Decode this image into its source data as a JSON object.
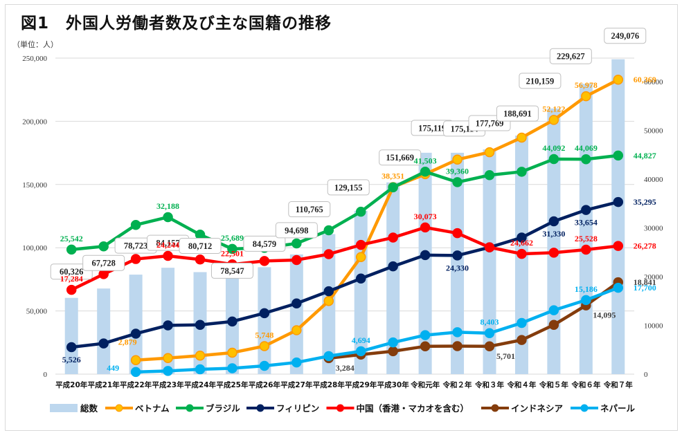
{
  "chart_data": {
    "type": "bar+line",
    "title": "図1　外国人労働者数及び主な国籍の推移",
    "unit_label": "（単位：人）",
    "categories": [
      "平成20年",
      "平成21年",
      "平成22年",
      "平成23年",
      "平成24年",
      "平成25年",
      "平成26年",
      "平成27年",
      "平成28年",
      "平成29年",
      "平成30年",
      "令和元年",
      "令和２年",
      "令和３年",
      "令和４年",
      "令和５年",
      "令和６年",
      "令和７年"
    ],
    "left_axis": {
      "min": 0,
      "max": 250000,
      "ticks": [
        "0",
        "50,000",
        "100,000",
        "150,000",
        "200,000",
        "250,000"
      ],
      "tick_values": [
        0,
        50000,
        100000,
        150000,
        200000,
        250000
      ]
    },
    "right_axis": {
      "min": 0,
      "max": 64800,
      "ticks": [
        "0",
        "10000",
        "20000",
        "30000",
        "40000",
        "50000",
        "60000"
      ],
      "tick_values": [
        0,
        10000,
        20000,
        30000,
        40000,
        50000,
        60000
      ]
    },
    "grid": true,
    "legend_position": "bottom",
    "bars": {
      "name": "総数",
      "color": "#bdd7ee",
      "axis": "left",
      "values": [
        60326,
        67728,
        78723,
        84157,
        80712,
        78547,
        84579,
        94698,
        110765,
        129155,
        151669,
        175119,
        175114,
        177769,
        188691,
        210159,
        229627,
        249076
      ],
      "labels": [
        "60,326",
        "67,728",
        "78,723",
        "84,157",
        "80,712",
        "78,547",
        "84,579",
        "94,698",
        "110,765",
        "129,155",
        "151,669",
        "175,119",
        "175,114",
        "177,769",
        "188,691",
        "210,159",
        "229,627",
        "249,076"
      ]
    },
    "series": [
      {
        "name": "ベトナム",
        "color": "#ff9900",
        "marker_fill": "#ffc000",
        "axis": "right",
        "values": [
          null,
          null,
          2879,
          3300,
          3800,
          4400,
          5748,
          9000,
          15000,
          24000,
          38351,
          41000,
          44000,
          45500,
          48500,
          52122,
          56978,
          60369
        ],
        "labels": [
          {
            "i": 2,
            "text": "2,879"
          },
          {
            "i": 6,
            "text": "5,748"
          },
          {
            "i": 10,
            "text": "38,351"
          },
          {
            "i": 15,
            "text": "52,122"
          },
          {
            "i": 16,
            "text": "56,978"
          },
          {
            "i": 17,
            "text": "60,369"
          }
        ]
      },
      {
        "name": "ブラジル",
        "color": "#00b050",
        "axis": "right",
        "values": [
          25542,
          26200,
          30600,
          32188,
          28600,
          25689,
          25900,
          26800,
          29500,
          33300,
          38300,
          41503,
          39360,
          40800,
          41500,
          44092,
          44069,
          44827
        ],
        "labels": [
          {
            "i": 0,
            "text": "25,542"
          },
          {
            "i": 3,
            "text": "32,188"
          },
          {
            "i": 5,
            "text": "25,689"
          },
          {
            "i": 11,
            "text": "41,503"
          },
          {
            "i": 12,
            "text": "39,360"
          },
          {
            "i": 15,
            "text": "44,092"
          },
          {
            "i": 16,
            "text": "44,069"
          },
          {
            "i": 17,
            "text": "44,827"
          }
        ]
      },
      {
        "name": "フィリピン",
        "color": "#002060",
        "axis": "right",
        "values": [
          5526,
          6300,
          8300,
          10000,
          10100,
          10800,
          12500,
          14500,
          17000,
          19600,
          22100,
          24400,
          24330,
          26000,
          28000,
          31330,
          33654,
          35295
        ],
        "labels": [
          {
            "i": 0,
            "text": "5,526"
          },
          {
            "i": 12,
            "text": "24,330"
          },
          {
            "i": 15,
            "text": "31,330"
          },
          {
            "i": 16,
            "text": "33,654"
          },
          {
            "i": 17,
            "text": "35,295"
          }
        ]
      },
      {
        "name": "中国（香港・マカオを含む）",
        "color": "#ff0000",
        "axis": "right",
        "values": [
          17284,
          20500,
          23600,
          24244,
          23500,
          22501,
          23200,
          23400,
          24600,
          26500,
          28000,
          30073,
          28900,
          26000,
          24662,
          24900,
          25528,
          26278
        ],
        "labels": [
          {
            "i": 0,
            "text": "17,284"
          },
          {
            "i": 3,
            "text": "24,244"
          },
          {
            "i": 5,
            "text": "22,501"
          },
          {
            "i": 11,
            "text": "30,073"
          },
          {
            "i": 14,
            "text": "24,662"
          },
          {
            "i": 16,
            "text": "25,528"
          },
          {
            "i": 17,
            "text": "26,278"
          }
        ]
      },
      {
        "name": "インドネシア",
        "color": "#843c0c",
        "axis": "right",
        "values": [
          null,
          null,
          null,
          null,
          null,
          null,
          null,
          null,
          3284,
          4000,
          4700,
          5700,
          5750,
          5701,
          7000,
          10100,
          14095,
          18841
        ],
        "labels": [
          {
            "i": 8,
            "text": "3,284"
          },
          {
            "i": 13,
            "text": "5,701"
          },
          {
            "i": 16,
            "text": "14,095"
          },
          {
            "i": 17,
            "text": "18,841"
          }
        ]
      },
      {
        "name": "ネパール",
        "color": "#00b0f0",
        "axis": "right",
        "values": [
          null,
          null,
          449,
          650,
          1000,
          1200,
          1700,
          2400,
          3700,
          4694,
          6500,
          8000,
          8600,
          8403,
          10500,
          13100,
          15186,
          17700
        ],
        "labels": [
          {
            "i": 2,
            "text": "449"
          },
          {
            "i": 9,
            "text": "4,694"
          },
          {
            "i": 13,
            "text": "8,403"
          },
          {
            "i": 16,
            "text": "15,186"
          },
          {
            "i": 17,
            "text": "17,700"
          }
        ]
      }
    ]
  }
}
